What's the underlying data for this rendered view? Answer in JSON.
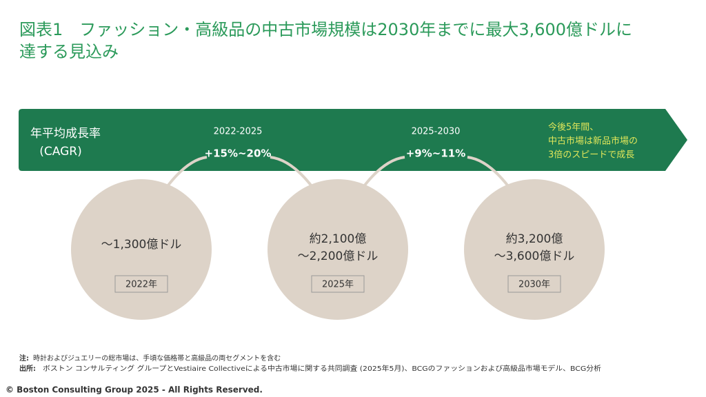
{
  "header": {
    "title_lines": [
      "図表1　ファッション・高級品の中古市場規模は2030年までに最大3,600億ドルに",
      "達する見込み"
    ]
  },
  "band": {
    "label_lines": [
      "年平均成長率",
      "(CAGR)"
    ],
    "periods": [
      {
        "range": "2022-2025",
        "rate": "+15%~20%"
      },
      {
        "range": "2025-2030",
        "rate": "+9%~11%"
      }
    ],
    "note_lines": [
      "今後5年間、",
      "中古市場は新品市場の",
      "3倍のスピードで成長"
    ]
  },
  "circles": [
    {
      "value_lines": [
        "～1,300億ドル"
      ],
      "year": "2022年"
    },
    {
      "value_lines": [
        "約2,100億",
        "～2,200億ドル"
      ],
      "year": "2025年"
    },
    {
      "value_lines": [
        "約3,200億",
        "～3,600億ドル"
      ],
      "year": "2030年"
    }
  ],
  "footer": {
    "note_label": "注:",
    "note": "時計およびジュエリーの総市場は、手頃な価格帯と高級品の両セグメントを含む",
    "source_label": "出所:",
    "source": "ボストン コンサルティング グループとVestiaire Collectiveによる中古市場に関する共同調査 (2025年5月)、BCGのファッションおよび高級品市場モデル、BCG分析",
    "copyright": "© Boston Consulting Group 2025 - All Rights Reserved."
  }
}
